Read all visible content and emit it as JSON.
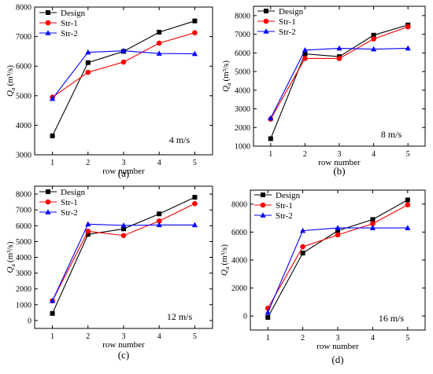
{
  "chart_data": [
    {
      "panel_label": "(a)",
      "type": "line",
      "annotation": "4 m/s",
      "xlabel": "row number",
      "ylabel_main": "Q",
      "ylabel_sub": "a",
      "ylabel_unit": "(m³/s)",
      "x": [
        1,
        2,
        3,
        4,
        5
      ],
      "xlim": [
        0.5,
        5.5
      ],
      "ylim": [
        3000,
        8000
      ],
      "yticks": [
        3000,
        4000,
        5000,
        6000,
        7000,
        8000
      ],
      "series": [
        {
          "name": "Design",
          "color": "#000000",
          "marker": "square",
          "values": [
            3640,
            6120,
            6500,
            7150,
            7530
          ]
        },
        {
          "name": "Str-1",
          "color": "#ff0000",
          "marker": "circle",
          "values": [
            4950,
            5790,
            6140,
            6780,
            7130
          ]
        },
        {
          "name": "Str-2",
          "color": "#0000ff",
          "marker": "triangle",
          "values": [
            4900,
            6470,
            6520,
            6430,
            6420
          ]
        }
      ]
    },
    {
      "panel_label": "(b)",
      "type": "line",
      "annotation": "8 m/s",
      "xlabel": "row number",
      "ylabel_main": "Q",
      "ylabel_sub": "a",
      "ylabel_unit": "(m³/s)",
      "x": [
        1,
        2,
        3,
        4,
        5
      ],
      "xlim": [
        0.5,
        5.5
      ],
      "ylim": [
        1000,
        8500
      ],
      "yticks": [
        1000,
        2000,
        3000,
        4000,
        5000,
        6000,
        7000,
        8000
      ],
      "series": [
        {
          "name": "Design",
          "color": "#000000",
          "marker": "square",
          "values": [
            1400,
            5950,
            5800,
            6950,
            7500
          ]
        },
        {
          "name": "Str-1",
          "color": "#ff0000",
          "marker": "circle",
          "values": [
            2450,
            5700,
            5700,
            6750,
            7400
          ]
        },
        {
          "name": "Str-2",
          "color": "#0000ff",
          "marker": "triangle",
          "values": [
            2500,
            6150,
            6250,
            6200,
            6250
          ]
        }
      ]
    },
    {
      "panel_label": "(c)",
      "type": "line",
      "annotation": "12 m/s",
      "xlabel": "row number",
      "ylabel_main": "Q",
      "ylabel_sub": "a",
      "ylabel_unit": "(m³/s)",
      "x": [
        1,
        2,
        3,
        4,
        5
      ],
      "xlim": [
        0.5,
        5.5
      ],
      "ylim": [
        -500,
        8500
      ],
      "yticks": [
        0,
        1000,
        2000,
        3000,
        4000,
        5000,
        6000,
        7000,
        8000
      ],
      "series": [
        {
          "name": "Design",
          "color": "#000000",
          "marker": "square",
          "values": [
            450,
            5450,
            5800,
            6750,
            7800
          ]
        },
        {
          "name": "Str-1",
          "color": "#ff0000",
          "marker": "circle",
          "values": [
            1250,
            5650,
            5380,
            6300,
            7400
          ]
        },
        {
          "name": "Str-2",
          "color": "#0000ff",
          "marker": "triangle",
          "values": [
            1250,
            6100,
            6020,
            6050,
            6050
          ]
        }
      ]
    },
    {
      "panel_label": "(d)",
      "type": "line",
      "annotation": "16 m/s",
      "xlabel": "row number",
      "ylabel_main": "Q",
      "ylabel_sub": "a",
      "ylabel_unit": "(m³/s)",
      "x": [
        1,
        2,
        3,
        4,
        5
      ],
      "xlim": [
        0.5,
        5.5
      ],
      "ylim": [
        -1000,
        9000
      ],
      "yticks": [
        0,
        2000,
        4000,
        6000,
        8000
      ],
      "series": [
        {
          "name": "Design",
          "color": "#000000",
          "marker": "square",
          "values": [
            -100,
            4500,
            6100,
            6900,
            8300
          ]
        },
        {
          "name": "Str-1",
          "color": "#ff0000",
          "marker": "circle",
          "values": [
            550,
            4950,
            5800,
            6600,
            7950
          ]
        },
        {
          "name": "Str-2",
          "color": "#0000ff",
          "marker": "triangle",
          "values": [
            250,
            6100,
            6300,
            6300,
            6300
          ]
        }
      ]
    }
  ]
}
